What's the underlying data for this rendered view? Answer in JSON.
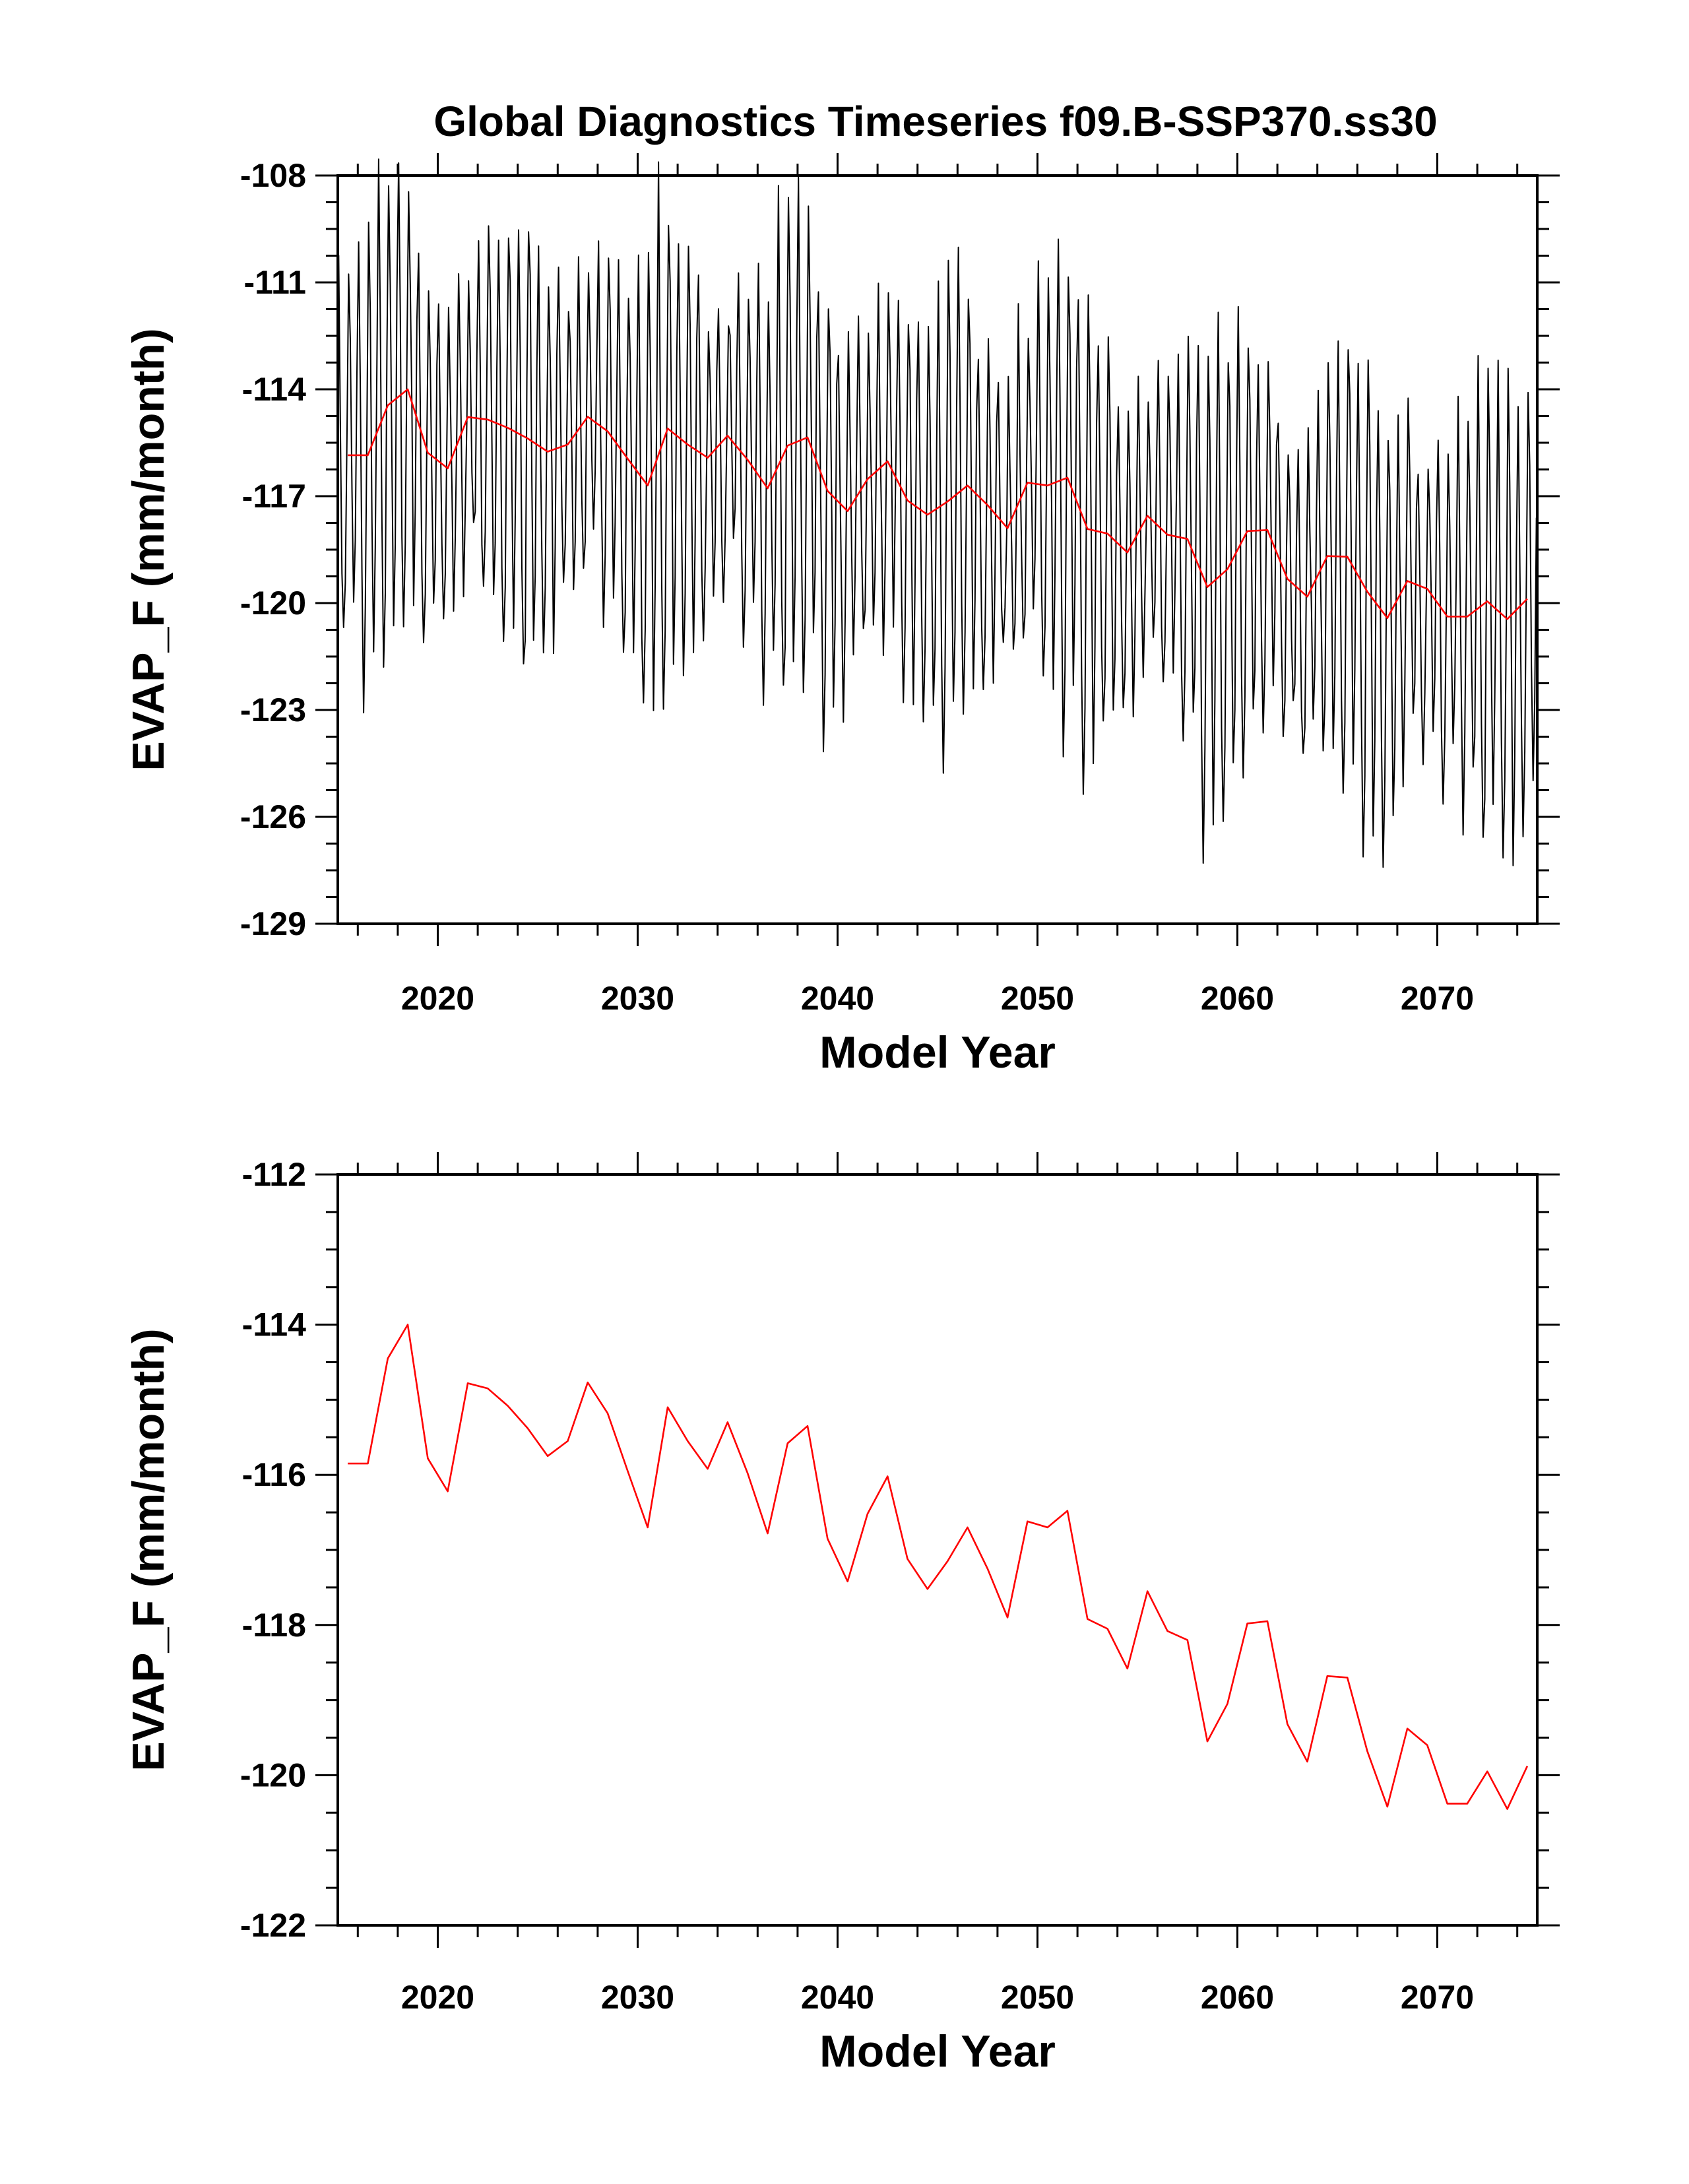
{
  "figure_title": "Global Diagnostics Timeseries f09.B-SSP370.ss30",
  "colors": {
    "monthly": "#000000",
    "annual": "#ff0000",
    "axes": "#000000",
    "background": "#ffffff"
  },
  "chart_data": [
    {
      "type": "line",
      "panel": "top",
      "xlabel": "Model Year",
      "ylabel": "EVAP_F (mm/month)",
      "xlim": [
        2015,
        2075
      ],
      "ylim": [
        -129,
        -108
      ],
      "xticks": [
        2020,
        2030,
        2040,
        2050,
        2060,
        2070
      ],
      "yticks": [
        -108,
        -111,
        -114,
        -117,
        -120,
        -123,
        -126,
        -129
      ],
      "grid": false,
      "series": [
        {
          "role": "monthly",
          "color": "#000000",
          "generated_from": "approximate monthly seasonal cycle",
          "start_year": 2015
        },
        {
          "role": "annual_mean",
          "color": "#ff0000",
          "x_source": "annual_years",
          "y_source": "annual_means"
        }
      ]
    },
    {
      "type": "line",
      "panel": "bottom",
      "xlabel": "Model Year",
      "ylabel": "EVAP_F (mm/month)",
      "xlim": [
        2015,
        2075
      ],
      "ylim": [
        -122,
        -112
      ],
      "xticks": [
        2020,
        2030,
        2040,
        2050,
        2060,
        2070
      ],
      "yticks": [
        -112,
        -114,
        -116,
        -118,
        -120,
        -122
      ],
      "grid": false,
      "series": [
        {
          "role": "annual_mean",
          "color": "#ff0000",
          "x_source": "annual_years",
          "y_source": "annual_means"
        }
      ]
    }
  ],
  "annual_years": [
    2015.5,
    2016.5,
    2017.5,
    2018.5,
    2019.5,
    2020.5,
    2021.5,
    2022.5,
    2023.5,
    2024.5,
    2025.5,
    2026.5,
    2027.5,
    2028.5,
    2029.5,
    2030.5,
    2031.5,
    2032.5,
    2033.5,
    2034.5,
    2035.5,
    2036.5,
    2037.5,
    2038.5,
    2039.5,
    2040.5,
    2041.5,
    2042.5,
    2043.5,
    2044.5,
    2045.5,
    2046.5,
    2047.5,
    2048.5,
    2049.5,
    2050.5,
    2051.5,
    2052.5,
    2053.5,
    2054.5,
    2055.5,
    2056.5,
    2057.5,
    2058.5,
    2059.5,
    2060.5,
    2061.5,
    2062.5,
    2063.5,
    2064.5,
    2065.5,
    2066.5,
    2067.5,
    2068.5,
    2069.5,
    2070.5,
    2071.5,
    2072.5,
    2073.5,
    2074.5
  ],
  "annual_means": [
    -115.85,
    -115.85,
    -114.45,
    -114.0,
    -115.78,
    -116.22,
    -114.78,
    -114.85,
    -115.08,
    -115.38,
    -115.75,
    -115.55,
    -114.77,
    -115.18,
    -115.95,
    -116.7,
    -115.1,
    -115.55,
    -115.92,
    -115.3,
    -115.98,
    -116.78,
    -115.58,
    -115.35,
    -116.85,
    -117.42,
    -116.52,
    -116.02,
    -117.12,
    -117.52,
    -117.15,
    -116.7,
    -117.25,
    -117.9,
    -116.62,
    -116.7,
    -116.48,
    -117.92,
    -118.05,
    -118.58,
    -117.55,
    -118.08,
    -118.2,
    -119.55,
    -119.05,
    -117.98,
    -117.95,
    -119.32,
    -119.82,
    -118.68,
    -118.7,
    -119.68,
    -120.42,
    -119.38,
    -119.6,
    -120.38,
    -120.38,
    -119.95,
    -120.45,
    -119.88
  ]
}
